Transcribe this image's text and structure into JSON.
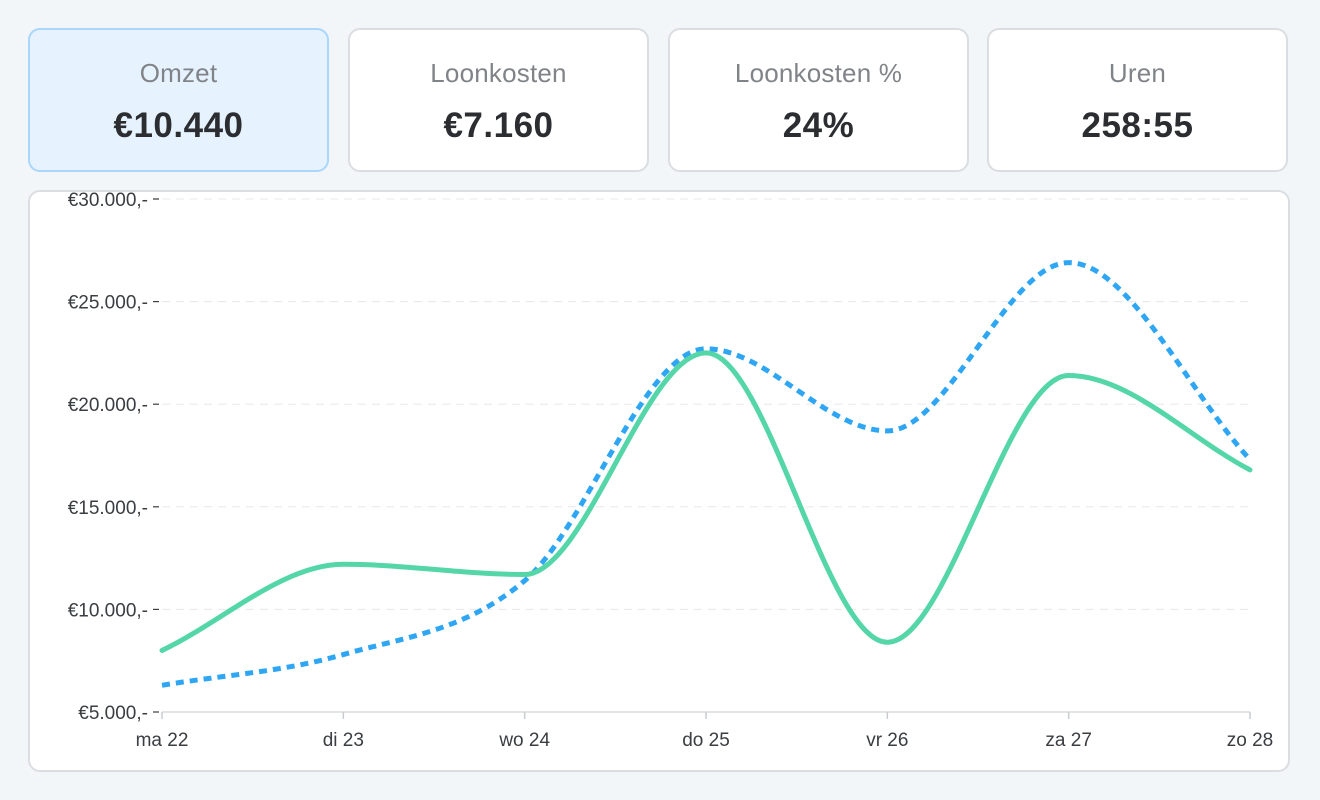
{
  "kpis": [
    {
      "label": "Omzet",
      "value": "€10.440",
      "active": true
    },
    {
      "label": "Loonkosten",
      "value": "€7.160",
      "active": false
    },
    {
      "label": "Loonkosten %",
      "value": "24%",
      "active": false
    },
    {
      "label": "Uren",
      "value": "258:55",
      "active": false
    }
  ],
  "chart_data": {
    "type": "line",
    "title": "",
    "xlabel": "",
    "ylabel": "",
    "categories": [
      "ma 22",
      "di 23",
      "wo 24",
      "do 25",
      "vr 26",
      "za 27",
      "zo 28"
    ],
    "ylim": [
      5000,
      30000
    ],
    "yticks": [
      5000,
      10000,
      15000,
      20000,
      25000,
      30000
    ],
    "ytick_labels": [
      "€5.000,-",
      "€10.000,-",
      "€15.000,-",
      "€20.000,-",
      "€25.000,-",
      "€30.000,-"
    ],
    "grid": true,
    "legend": "none",
    "series": [
      {
        "values": [
          8000,
          12200,
          11700,
          22500,
          8400,
          21400,
          16800
        ],
        "color": "#55d6a8",
        "style": "solid"
      },
      {
        "values": [
          6300,
          7800,
          11400,
          22700,
          18700,
          26900,
          17300
        ],
        "color": "#2ea6f4",
        "style": "dotted"
      }
    ]
  }
}
